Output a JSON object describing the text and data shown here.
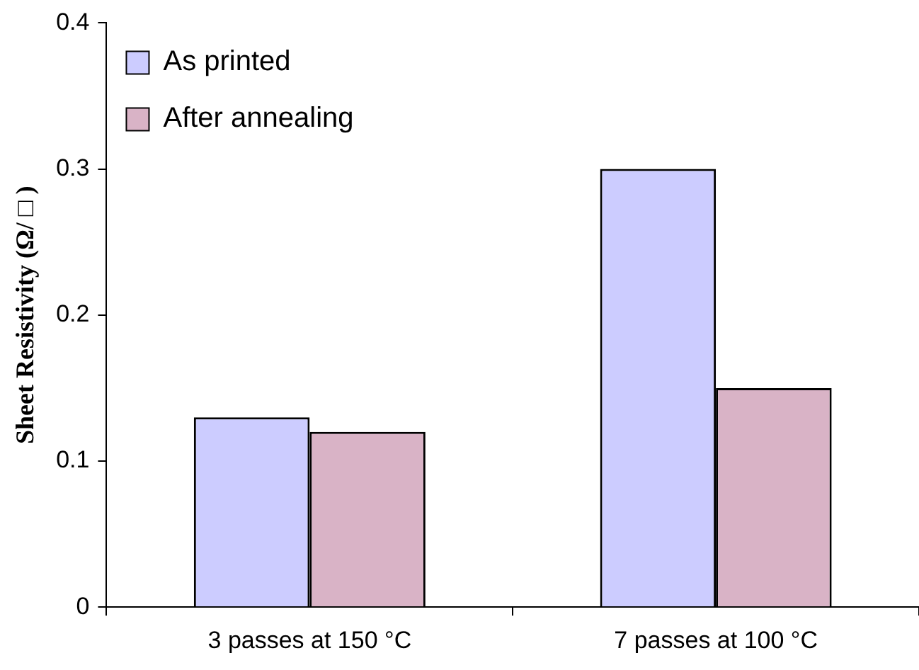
{
  "chart_data": {
    "type": "bar",
    "ylabel": "Sheet Resistivity (Ω/ □ )",
    "categories": [
      "3 passes at 150 °C",
      "7 passes at 100 °C"
    ],
    "series": [
      {
        "name": "As printed",
        "color": "#ccccff",
        "values": [
          0.13,
          0.3
        ]
      },
      {
        "name": "After annealing",
        "color": "#d9b3c6",
        "values": [
          0.12,
          0.15
        ]
      }
    ],
    "ylim": [
      0,
      0.4
    ],
    "yticks": [
      0,
      0.1,
      0.2,
      0.3,
      0.4
    ],
    "grid": false,
    "legend": "top left"
  }
}
